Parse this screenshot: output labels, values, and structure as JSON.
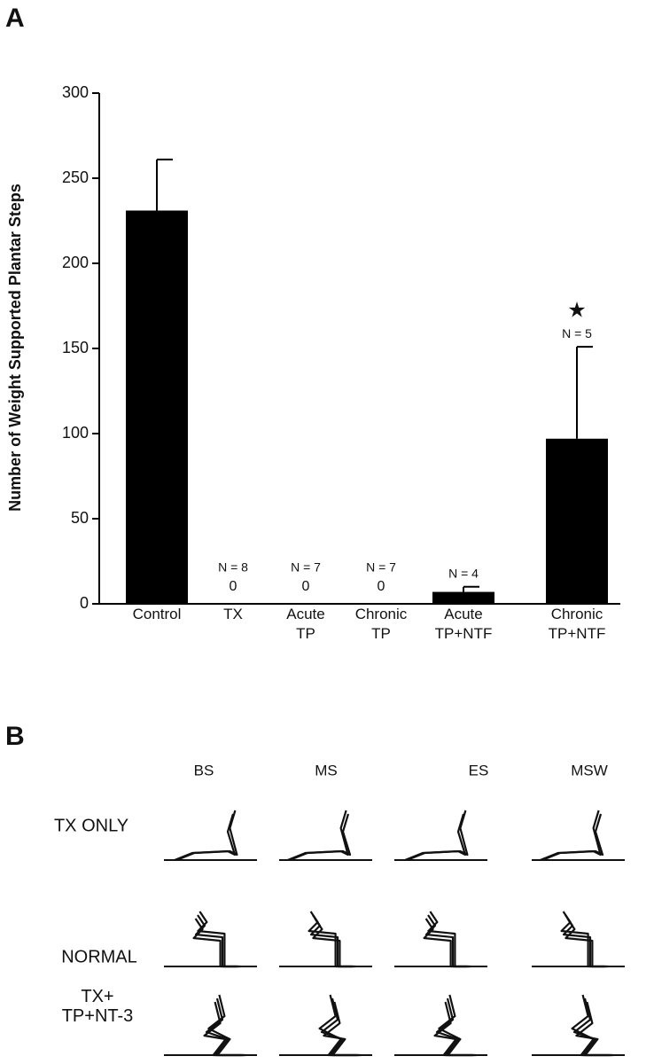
{
  "chart_data": {
    "type": "bar",
    "panel_label": "A",
    "ylabel": "Number of Weight Supported Plantar Steps",
    "categories": [
      "Control",
      "TX",
      "Acute TP",
      "Chronic TP",
      "Acute TP+NTF",
      "Chronic TP+NTF"
    ],
    "values": [
      231,
      0,
      0,
      0,
      7,
      97
    ],
    "errors": [
      30,
      null,
      null,
      null,
      3,
      54
    ],
    "show_value_label": [
      false,
      true,
      true,
      true,
      false,
      false
    ],
    "n_labels": [
      null,
      "N = 8",
      "N = 7",
      "N = 7",
      "N = 4",
      "N = 5"
    ],
    "significance_markers": [
      null,
      null,
      null,
      null,
      null,
      "★"
    ],
    "color": "#000000",
    "ylim": [
      0,
      300
    ],
    "yticks": [
      0,
      50,
      100,
      150,
      200,
      250,
      300
    ]
  },
  "panel_b": {
    "label": "B",
    "columns": [
      "BS",
      "MS",
      "ES",
      "MSW"
    ],
    "rows": [
      "TX ONLY",
      "NORMAL",
      "TX+ TP+NT-3"
    ]
  }
}
